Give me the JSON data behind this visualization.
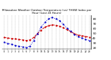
{
  "title": "Milwaukee Weather Outdoor Temperature (vs) THSW Index per Hour (Last 24 Hours)",
  "bg_color": "#ffffff",
  "grid_color": "#888888",
  "hours": [
    0,
    1,
    2,
    3,
    4,
    5,
    6,
    7,
    8,
    9,
    10,
    11,
    12,
    13,
    14,
    15,
    16,
    17,
    18,
    19,
    20,
    21,
    22,
    23
  ],
  "temp": [
    42,
    41,
    40,
    39,
    38,
    37,
    36,
    37,
    42,
    50,
    57,
    63,
    66,
    68,
    67,
    65,
    62,
    58,
    54,
    50,
    47,
    46,
    44,
    43
  ],
  "thsw": [
    32,
    30,
    28,
    26,
    24,
    23,
    22,
    24,
    36,
    50,
    63,
    73,
    80,
    83,
    80,
    76,
    69,
    61,
    55,
    48,
    44,
    41,
    38,
    36
  ],
  "temp_color": "#cc0000",
  "thsw_color": "#0000cc",
  "ylim_min": 18,
  "ylim_max": 88,
  "yticks": [
    20,
    30,
    40,
    50,
    60,
    70,
    80
  ],
  "ylabel_fontsize": 3.2,
  "title_fontsize": 3.0,
  "linewidth": 0.7,
  "markersize": 1.5,
  "figwidth": 1.6,
  "figheight": 0.87,
  "dpi": 100
}
